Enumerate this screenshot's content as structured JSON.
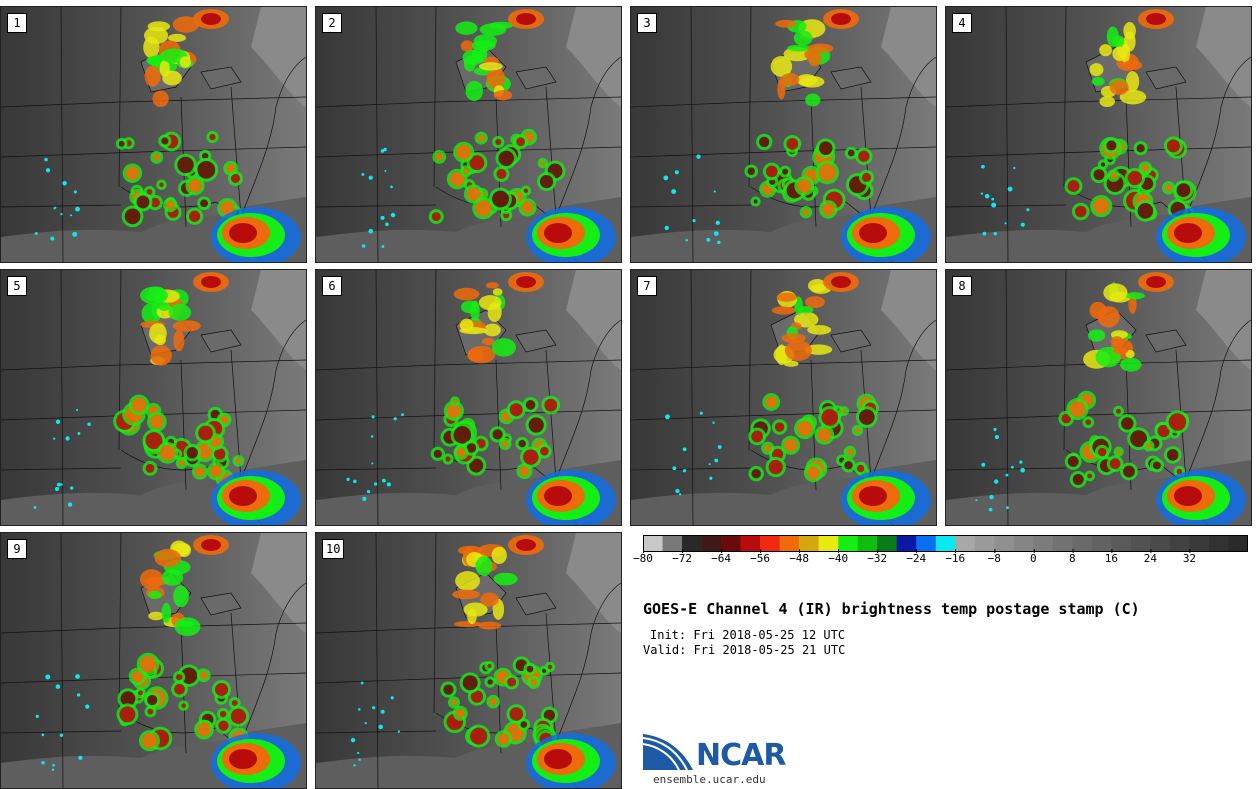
{
  "panels": [
    {
      "label": "1"
    },
    {
      "label": "2"
    },
    {
      "label": "3"
    },
    {
      "label": "4"
    },
    {
      "label": "5"
    },
    {
      "label": "6"
    },
    {
      "label": "7"
    },
    {
      "label": "8"
    },
    {
      "label": "9"
    },
    {
      "label": "10"
    }
  ],
  "colorbar": {
    "colors": [
      "#c8c8c8",
      "#787878",
      "#282828",
      "#401818",
      "#6a0a0a",
      "#b80c0c",
      "#f02a10",
      "#ee6a0a",
      "#d4a80c",
      "#e8e812",
      "#14ee14",
      "#0ebe0e",
      "#0a7a1a",
      "#0a18a8",
      "#0a6ef0",
      "#0ae8f0",
      "#a8a8a8",
      "#9a9a9a",
      "#909090",
      "#858585",
      "#7c7c7c",
      "#727272",
      "#6a6a6a",
      "#626262",
      "#5a5a5a",
      "#525252",
      "#4a4a4a",
      "#424242",
      "#3a3a3a",
      "#323232",
      "#2a2a2a"
    ],
    "ticks": [
      "−80",
      "−72",
      "−64",
      "−56",
      "−48",
      "−40",
      "−32",
      "−24",
      "−16",
      "−8",
      "0",
      "8",
      "16",
      "24",
      "32"
    ]
  },
  "title": "GOES-E Channel 4 (IR) brightness temp postage stamp (C)",
  "init": "Init: Fri 2018-05-25 12 UTC",
  "valid": "Valid: Fri 2018-05-25 21 UTC",
  "logo": {
    "text": "NCAR",
    "url": "ensemble.ucar.edu",
    "icon": "ncar-logo-icon"
  }
}
